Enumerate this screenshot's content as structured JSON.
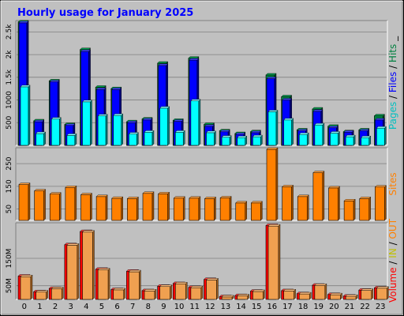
{
  "chart_data": [
    {
      "type": "bar",
      "title": "Hourly usage for January 2025",
      "categories": [
        "0",
        "1",
        "2",
        "3",
        "4",
        "5",
        "6",
        "7",
        "8",
        "9",
        "10",
        "11",
        "12",
        "13",
        "14",
        "15",
        "16",
        "17",
        "18",
        "19",
        "20",
        "21",
        "22",
        "23"
      ],
      "ylim": [
        0,
        2750
      ],
      "yticks": [
        500,
        1000,
        1500,
        2000,
        2500
      ],
      "ytick_labels": [
        "500",
        "1000",
        "1.5k",
        "2k",
        "2.5k"
      ],
      "axis_label_parts": [
        "Pages",
        " / ",
        "Files",
        " / ",
        "Hits",
        " _"
      ],
      "series": [
        {
          "name": "Hits",
          "values": [
            2720,
            540,
            1420,
            460,
            2110,
            1280,
            1250,
            520,
            580,
            1810,
            550,
            1920,
            460,
            320,
            260,
            300,
            1550,
            1070,
            340,
            800,
            420,
            300,
            340,
            650
          ]
        },
        {
          "name": "Files",
          "values": [
            2700,
            520,
            1400,
            440,
            2070,
            1230,
            1230,
            500,
            560,
            1760,
            530,
            1880,
            420,
            300,
            240,
            280,
            1470,
            1000,
            320,
            750,
            390,
            290,
            320,
            560
          ]
        },
        {
          "name": "Pages",
          "values": [
            1290,
            260,
            580,
            220,
            960,
            650,
            660,
            250,
            290,
            820,
            290,
            980,
            280,
            180,
            170,
            190,
            740,
            560,
            240,
            450,
            270,
            190,
            170,
            380
          ]
        }
      ],
      "colors": {
        "Hits": "#008040",
        "Files": "#0000ff",
        "Pages": "#00ffff"
      }
    },
    {
      "type": "bar",
      "categories": [
        "0",
        "1",
        "2",
        "3",
        "4",
        "5",
        "6",
        "7",
        "8",
        "9",
        "10",
        "11",
        "12",
        "13",
        "14",
        "15",
        "16",
        "17",
        "18",
        "19",
        "20",
        "21",
        "22",
        "23"
      ],
      "ylim": [
        0,
        320
      ],
      "yticks": [
        50,
        150,
        250
      ],
      "ytick_labels": [
        "50",
        "150",
        "250"
      ],
      "axis_label": "Sites",
      "series": [
        {
          "name": "Sites",
          "values": [
            158,
            130,
            116,
            145,
            113,
            105,
            97,
            96,
            119,
            117,
            98,
            98,
            96,
            99,
            77,
            77,
            313,
            148,
            105,
            210,
            143,
            86,
            96,
            147
          ]
        }
      ],
      "colors": {
        "Sites": "#ff8000"
      }
    },
    {
      "type": "bar",
      "categories": [
        "0",
        "1",
        "2",
        "3",
        "4",
        "5",
        "6",
        "7",
        "8",
        "9",
        "10",
        "11",
        "12",
        "13",
        "14",
        "15",
        "16",
        "17",
        "18",
        "19",
        "20",
        "21",
        "22",
        "23"
      ],
      "ylim": [
        0,
        280
      ],
      "yticks": [
        50,
        150
      ],
      "ytick_labels": [
        "50M",
        "150M"
      ],
      "axis_label_parts": [
        "Volume",
        " / ",
        "IN",
        " / ",
        "OUT"
      ],
      "series": [
        {
          "name": "Volume",
          "values": [
            85,
            28,
            40,
            200,
            248,
            110,
            36,
            103,
            32,
            48,
            58,
            44,
            73,
            10,
            14,
            30,
            270,
            32,
            21,
            52,
            18,
            12,
            34,
            42
          ]
        },
        {
          "name": "OUT",
          "values": [
            83,
            27,
            39,
            198,
            246,
            108,
            35,
            101,
            31,
            47,
            57,
            43,
            71,
            9,
            13,
            29,
            268,
            31,
            20,
            51,
            17,
            11,
            33,
            41
          ]
        }
      ],
      "colors": {
        "Volume": "#ff0000",
        "IN": "#ffff00",
        "OUT": "#ff8000"
      }
    }
  ],
  "style": {
    "background": "#c0c0c0",
    "plot_background": "#c0c0c0",
    "title_color": "#0000ff",
    "label_colors": {
      "Pages": "#00c0c0",
      "Files": "#0000ff",
      "Hits": "#008040",
      "Sites": "#ff8000",
      "Volume": "#ff0000",
      "IN": "#c0c000",
      "OUT": "#ff8000"
    }
  }
}
